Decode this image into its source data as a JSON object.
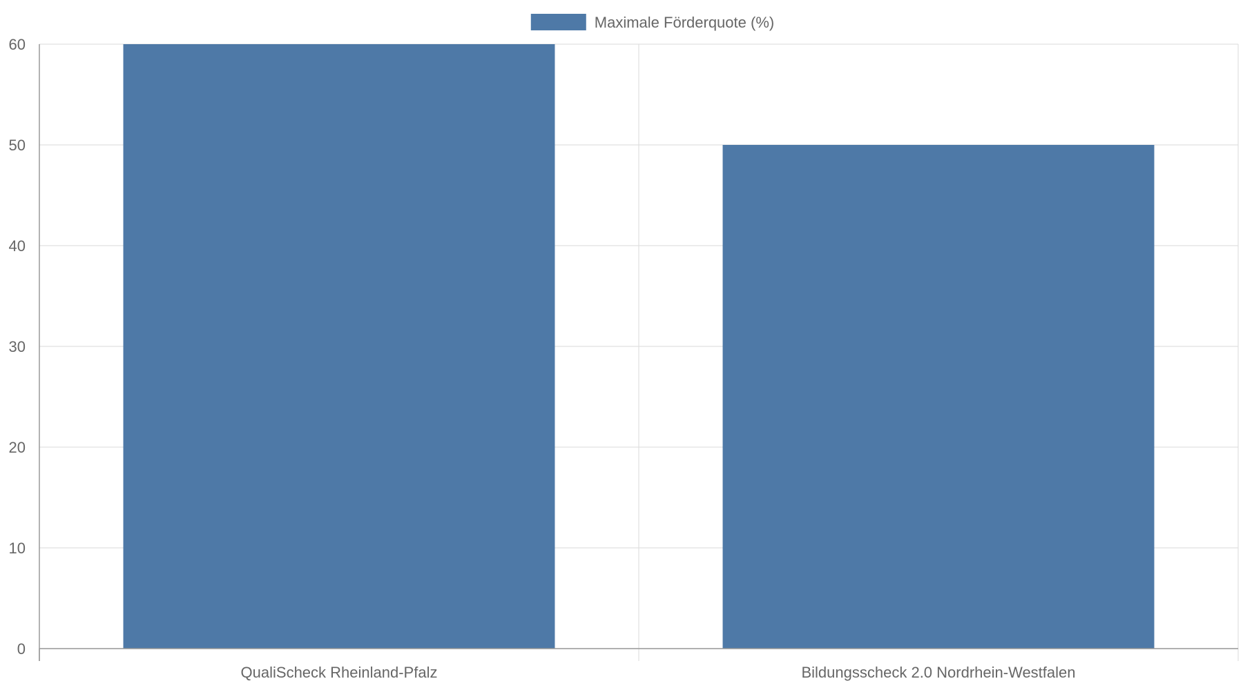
{
  "chart_data": {
    "type": "bar",
    "categories": [
      "QualiScheck Rheinland-Pfalz",
      "Bildungsscheck 2.0 Nordrhein-Westfalen"
    ],
    "series": [
      {
        "name": "Maximale Förderquote (%)",
        "values": [
          60,
          50
        ],
        "color": "#4e79a7"
      }
    ],
    "ylim": [
      0,
      60
    ],
    "yticks": [
      "0",
      "10",
      "20",
      "30",
      "40",
      "50",
      "60"
    ],
    "grid": true,
    "legend_position": "top-center"
  }
}
